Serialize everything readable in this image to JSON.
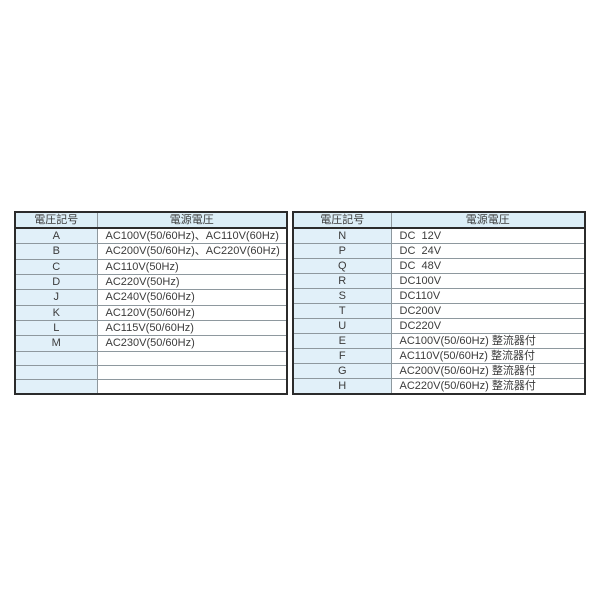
{
  "palette": {
    "header_bg": "#dceef7",
    "code_col_bg": "#e1f0f9",
    "cell_bg": "#ffffff",
    "outer_border": "#2b2b2b",
    "inner_border": "#8e989e",
    "text": "#3b3b3b"
  },
  "tables": [
    {
      "name": "ac-voltage-table",
      "headers": [
        "電圧記号",
        "電源電圧"
      ],
      "rows": [
        [
          "A",
          "AC100V(50/60Hz)、AC110V(60Hz)"
        ],
        [
          "B",
          "AC200V(50/60Hz)、AC220V(60Hz)"
        ],
        [
          "C",
          "AC110V(50Hz)"
        ],
        [
          "D",
          "AC220V(50Hz)"
        ],
        [
          "J",
          "AC240V(50/60Hz)"
        ],
        [
          "K",
          "AC120V(50/60Hz)"
        ],
        [
          "L",
          "AC115V(50/60Hz)"
        ],
        [
          "M",
          "AC230V(50/60Hz)"
        ],
        [
          "",
          ""
        ],
        [
          "",
          ""
        ],
        [
          "",
          ""
        ]
      ]
    },
    {
      "name": "dc-voltage-table",
      "headers": [
        "電圧記号",
        "電源電圧"
      ],
      "rows": [
        [
          "N",
          "DC  12V"
        ],
        [
          "P",
          "DC  24V"
        ],
        [
          "Q",
          "DC  48V"
        ],
        [
          "R",
          "DC100V"
        ],
        [
          "S",
          "DC110V"
        ],
        [
          "T",
          "DC200V"
        ],
        [
          "U",
          "DC220V"
        ],
        [
          "E",
          "AC100V(50/60Hz) 整流器付"
        ],
        [
          "F",
          "AC110V(50/60Hz) 整流器付"
        ],
        [
          "G",
          "AC200V(50/60Hz) 整流器付"
        ],
        [
          "H",
          "AC220V(50/60Hz) 整流器付"
        ]
      ]
    }
  ]
}
